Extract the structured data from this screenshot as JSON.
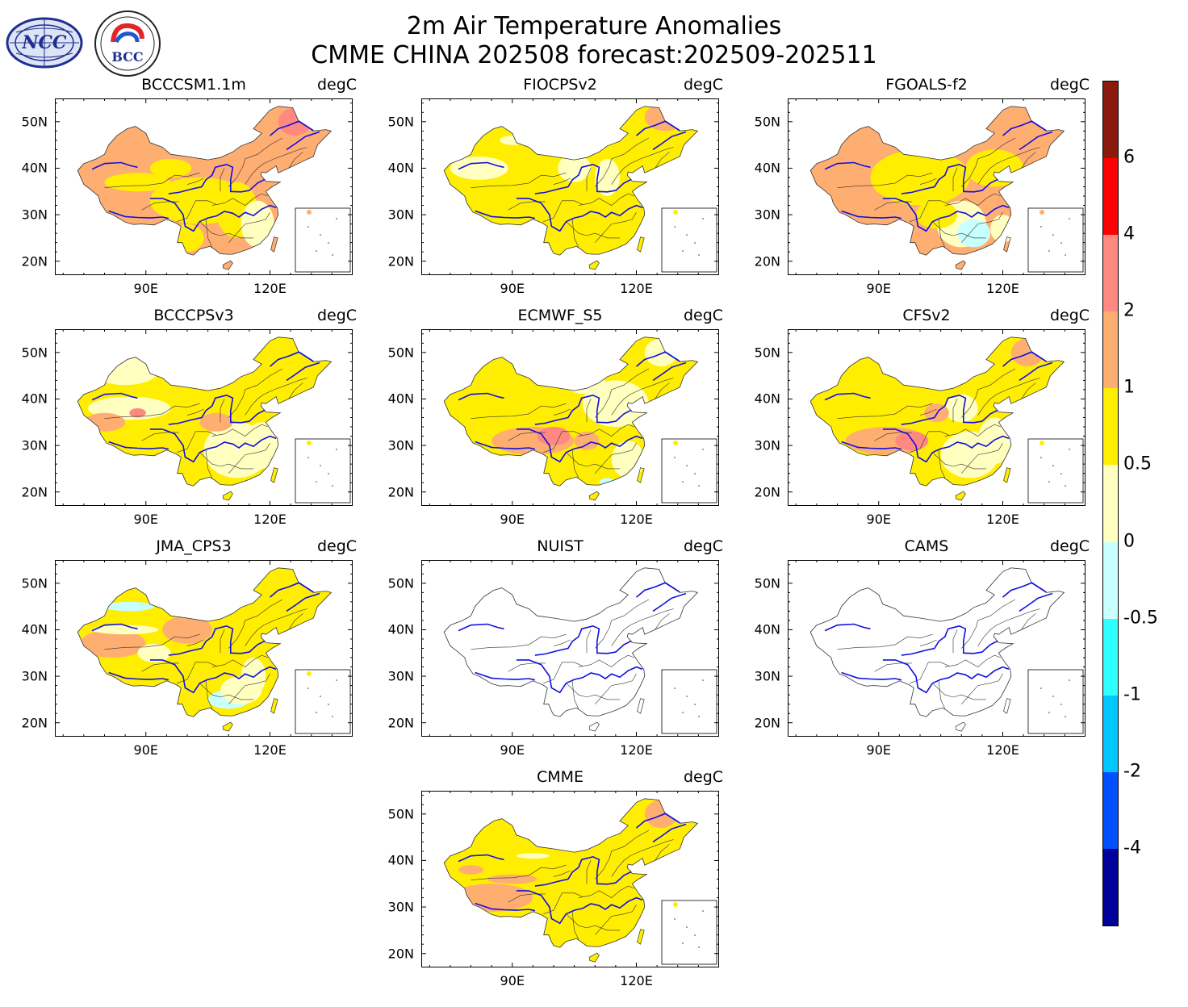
{
  "header": {
    "title_line1": "2m Air Temperature Anomalies",
    "title_line2": "CMME CHINA 202508 forecast:202509-202511"
  },
  "logos": [
    {
      "name": "NCC",
      "text": "NCC"
    },
    {
      "name": "BCC",
      "text": "BCC"
    }
  ],
  "axes": {
    "lat_labels": [
      "50N",
      "40N",
      "30N",
      "20N"
    ],
    "lon_labels": [
      "90E",
      "120E"
    ],
    "lat_range": [
      17,
      55
    ],
    "lon_range": [
      68,
      140
    ]
  },
  "panels": [
    {
      "model": "BCCCSM1.1m",
      "unit": "degC",
      "dominant": "1 to 2",
      "has_data": true
    },
    {
      "model": "FIOCPSv2",
      "unit": "degC",
      "dominant": "0.5 to 1",
      "has_data": true
    },
    {
      "model": "FGOALS-f2",
      "unit": "degC",
      "dominant": "1 to 2 west, 0 to 0.5 southeast",
      "has_data": true
    },
    {
      "model": "BCCCPSv3",
      "unit": "degC",
      "dominant": "0.5 to 1",
      "has_data": true
    },
    {
      "model": "ECMWF_S5",
      "unit": "degC",
      "dominant": "0.5 to 1",
      "has_data": true
    },
    {
      "model": "CFSv2",
      "unit": "degC",
      "dominant": "0.5 to 1",
      "has_data": true
    },
    {
      "model": "JMA_CPS3",
      "unit": "degC",
      "dominant": "0.5 to 1",
      "has_data": true
    },
    {
      "model": "NUIST",
      "unit": "degC",
      "dominant": "none",
      "has_data": false
    },
    {
      "model": "CAMS",
      "unit": "degC",
      "dominant": "none",
      "has_data": false
    },
    {
      "model": "CMME",
      "unit": "degC",
      "dominant": "0.5 to 1",
      "has_data": true
    }
  ],
  "colorbar": {
    "ticks": [
      "6",
      "4",
      "2",
      "1",
      "0.5",
      "0",
      "-0.5",
      "-1",
      "-2",
      "-4"
    ],
    "colors_top_to_bottom": [
      "#8b1a0e",
      "#ff0000",
      "#ff8880",
      "#ffae72",
      "#ffee00",
      "#ffffc0",
      "#c8ffff",
      "#30ffff",
      "#00c8ff",
      "#0050ff",
      "#00009a"
    ]
  }
}
